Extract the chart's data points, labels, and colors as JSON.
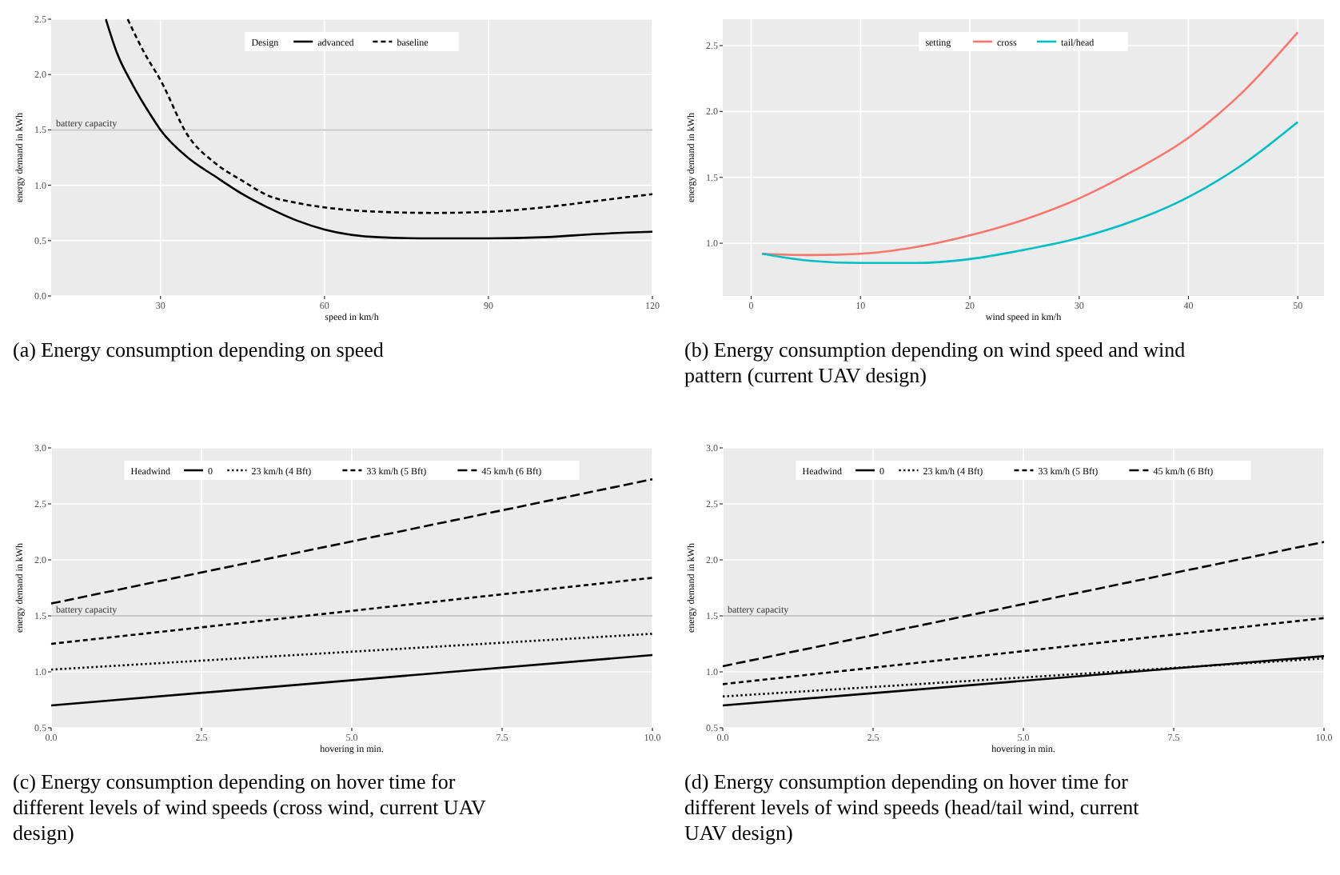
{
  "chart_data": [
    {
      "type": "line",
      "title": "(a) Energy consumption depending on speed",
      "xlabel": "speed in km/h",
      "ylabel": "energy demand in kWh",
      "legend_title": "Design",
      "legend": "top",
      "grid": true,
      "xlim": [
        10,
        120
      ],
      "xticks": [
        30,
        60,
        90,
        120
      ],
      "ylim": [
        0,
        2.5
      ],
      "yticks": [
        {
          "value": 0,
          "label": "0.0"
        },
        {
          "value": 0.5,
          "label": "0.5"
        },
        {
          "value": 1,
          "label": "1.0"
        },
        {
          "value": 1.5,
          "label": "1.5"
        },
        {
          "value": 2,
          "label": "2.0"
        },
        {
          "value": 2.5,
          "label": "2.5"
        }
      ],
      "ref_lines": [
        {
          "axis": "y",
          "value": 1.5,
          "label": "battery capacity",
          "color": "#c8c8c8"
        }
      ],
      "series": [
        {
          "name": "advanced",
          "color": "#000000",
          "line_style": "solid",
          "x": [
            20,
            22,
            25,
            28,
            30,
            35,
            40,
            45,
            50,
            55,
            60,
            70,
            80,
            90,
            100,
            110,
            120
          ],
          "values": [
            2.5,
            2.2,
            1.9,
            1.65,
            1.5,
            1.25,
            1.08,
            0.92,
            0.79,
            0.68,
            0.6,
            0.53,
            0.52,
            0.52,
            0.53,
            0.56,
            0.58
          ]
        },
        {
          "name": "baseline",
          "color": "#000000",
          "line_style": "dashed",
          "x": [
            24,
            27,
            30,
            35,
            40,
            45,
            50,
            55,
            60,
            70,
            80,
            90,
            100,
            110,
            120
          ],
          "values": [
            2.5,
            2.2,
            1.95,
            1.45,
            1.2,
            1.04,
            0.9,
            0.84,
            0.8,
            0.76,
            0.75,
            0.76,
            0.8,
            0.86,
            0.92
          ]
        }
      ]
    },
    {
      "type": "line",
      "title": "(b) Energy consumption depending on wind speed and wind pattern (current UAV design)",
      "xlabel": "wind speed in km/h",
      "ylabel": "energy demand in kWh",
      "legend_title": "setting",
      "legend": "top",
      "grid": true,
      "xlim": [
        -2.6,
        52.4
      ],
      "xticks": [
        0,
        10,
        20,
        30,
        40,
        50
      ],
      "ylim": [
        0.6,
        2.7
      ],
      "yticks": [
        {
          "value": 1,
          "label": "1.0"
        },
        {
          "value": 1.5,
          "label": "1.5"
        },
        {
          "value": 2,
          "label": "2.0"
        },
        {
          "value": 2.5,
          "label": "2.5"
        }
      ],
      "x": [
        1,
        5,
        10,
        15,
        20,
        25,
        30,
        35,
        40,
        45,
        50
      ],
      "series": [
        {
          "name": "cross",
          "color": "#f8766d",
          "line_style": "solid",
          "values": [
            0.92,
            0.91,
            0.92,
            0.97,
            1.06,
            1.18,
            1.34,
            1.55,
            1.8,
            2.15,
            2.6
          ]
        },
        {
          "name": "tail/head",
          "color": "#00bfc4",
          "line_style": "solid",
          "values": [
            0.92,
            0.87,
            0.85,
            0.85,
            0.88,
            0.95,
            1.04,
            1.17,
            1.35,
            1.6,
            1.92
          ]
        }
      ]
    },
    {
      "type": "line",
      "title": "(c) Energy consumption depending on hover time for different levels of wind speeds (cross wind, current UAV design)",
      "xlabel": "hovering in min.",
      "ylabel": "energy demand in kWh",
      "legend_title": "Headwind",
      "legend": "top",
      "grid": true,
      "xlim": [
        0,
        10
      ],
      "xticks": [
        {
          "value": 0,
          "label": "0.0"
        },
        {
          "value": 2.5,
          "label": "2.5"
        },
        {
          "value": 5,
          "label": "5.0"
        },
        {
          "value": 7.5,
          "label": "7.5"
        },
        {
          "value": 10,
          "label": "10.0"
        }
      ],
      "ylim": [
        0.5,
        3.0
      ],
      "yticks": [
        {
          "value": 0.5,
          "label": "0.5"
        },
        {
          "value": 1,
          "label": "1.0"
        },
        {
          "value": 1.5,
          "label": "1.5"
        },
        {
          "value": 2,
          "label": "2.0"
        },
        {
          "value": 2.5,
          "label": "2.5"
        },
        {
          "value": 3,
          "label": "3.0"
        }
      ],
      "ref_lines": [
        {
          "axis": "y",
          "value": 1.5,
          "label": "battery capacity",
          "color": "#c8c8c8"
        }
      ],
      "x": [
        0,
        10
      ],
      "series": [
        {
          "name": "0",
          "color": "#000000",
          "line_style": "solid",
          "values": [
            0.7,
            1.15
          ]
        },
        {
          "name": "23 km/h (4 Bft)",
          "color": "#000000",
          "line_style": "dotted",
          "values": [
            1.02,
            1.34
          ]
        },
        {
          "name": "33 km/h (5 Bft)",
          "color": "#000000",
          "line_style": "dashed",
          "values": [
            1.25,
            1.84
          ]
        },
        {
          "name": "45 km/h (6 Bft)",
          "color": "#000000",
          "line_style": "longdash",
          "values": [
            1.61,
            2.72
          ]
        }
      ]
    },
    {
      "type": "line",
      "title": "(d) Energy consumption depending on hover time for different levels of wind speeds (head/tail wind, current UAV design)",
      "xlabel": "hovering in min.",
      "ylabel": "energy demand in kWh",
      "legend_title": "Headwind",
      "legend": "top",
      "grid": true,
      "xlim": [
        0,
        10
      ],
      "xticks": [
        {
          "value": 0,
          "label": "0.0"
        },
        {
          "value": 2.5,
          "label": "2.5"
        },
        {
          "value": 5,
          "label": "5.0"
        },
        {
          "value": 7.5,
          "label": "7.5"
        },
        {
          "value": 10,
          "label": "10.0"
        }
      ],
      "ylim": [
        0.5,
        3.0
      ],
      "yticks": [
        {
          "value": 0.5,
          "label": "0.5"
        },
        {
          "value": 1,
          "label": "1.0"
        },
        {
          "value": 1.5,
          "label": "1.5"
        },
        {
          "value": 2,
          "label": "2.0"
        },
        {
          "value": 2.5,
          "label": "2.5"
        },
        {
          "value": 3,
          "label": "3.0"
        }
      ],
      "ref_lines": [
        {
          "axis": "y",
          "value": 1.5,
          "label": "battery capacity",
          "color": "#c8c8c8"
        }
      ],
      "x": [
        0,
        10
      ],
      "series": [
        {
          "name": "0",
          "color": "#000000",
          "line_style": "solid",
          "values": [
            0.7,
            1.14
          ]
        },
        {
          "name": "23 km/h (4 Bft)",
          "color": "#000000",
          "line_style": "dotted",
          "values": [
            0.78,
            1.12
          ]
        },
        {
          "name": "33 km/h (5 Bft)",
          "color": "#000000",
          "line_style": "dashed",
          "values": [
            0.89,
            1.48
          ]
        },
        {
          "name": "45 km/h (6 Bft)",
          "color": "#000000",
          "line_style": "longdash",
          "values": [
            1.05,
            2.16
          ]
        }
      ]
    }
  ]
}
